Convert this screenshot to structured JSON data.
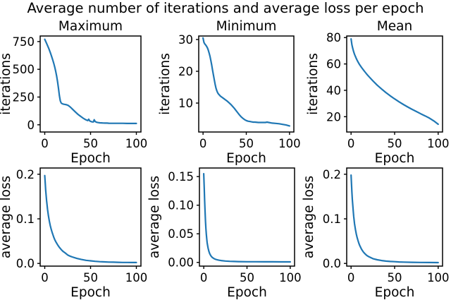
{
  "figure": {
    "title": "Average number of iterations and average loss per epoch"
  },
  "style": {
    "line_color": "#1f77b4",
    "axis_color": "#000000",
    "background": "#ffffff"
  },
  "chart_data": [
    {
      "type": "line",
      "title": "Maximum",
      "xlabel": "Epoch",
      "ylabel": "iterations",
      "legend": null,
      "grid": false,
      "xlim": [
        -5,
        105
      ],
      "ylim": [
        -65,
        800
      ],
      "xticks": [
        {
          "v": 0,
          "label": "0"
        },
        {
          "v": 50,
          "label": "50"
        },
        {
          "v": 100,
          "label": "100"
        }
      ],
      "yticks": [
        {
          "v": 0,
          "label": "0"
        },
        {
          "v": 250,
          "label": "250"
        },
        {
          "v": 500,
          "label": "500"
        },
        {
          "v": 750,
          "label": "750"
        }
      ],
      "x": [
        0,
        1,
        2,
        3,
        4,
        5,
        6,
        7,
        8,
        9,
        10,
        11,
        12,
        13,
        14,
        15,
        16,
        17,
        18,
        19,
        20,
        21,
        22,
        23,
        24,
        25,
        26,
        27,
        28,
        29,
        30,
        32,
        34,
        36,
        38,
        40,
        42,
        44,
        45,
        46,
        47,
        48,
        49,
        50,
        51,
        52,
        53,
        54,
        55,
        56,
        57,
        58,
        60,
        62,
        64,
        66,
        68,
        70,
        75,
        80,
        85,
        90,
        95,
        100
      ],
      "y": [
        770,
        752,
        734,
        715,
        696,
        675,
        652,
        628,
        603,
        577,
        549,
        517,
        480,
        438,
        388,
        328,
        262,
        215,
        196,
        190,
        187,
        185,
        184,
        182,
        180,
        177,
        172,
        166,
        159,
        151,
        143,
        127,
        111,
        96,
        83,
        71,
        59,
        49,
        45,
        41,
        38,
        50,
        36,
        31,
        28,
        26,
        25,
        45,
        30,
        25,
        22,
        20,
        18,
        17,
        16,
        15,
        15,
        14,
        13,
        13,
        13,
        12,
        12,
        12
      ]
    },
    {
      "type": "line",
      "title": "Minimum",
      "xlabel": "Epoch",
      "ylabel": "iterations",
      "legend": null,
      "grid": false,
      "xlim": [
        -5,
        105
      ],
      "ylim": [
        0.9,
        31.1
      ],
      "xticks": [
        {
          "v": 0,
          "label": "0"
        },
        {
          "v": 50,
          "label": "50"
        },
        {
          "v": 100,
          "label": "100"
        }
      ],
      "yticks": [
        {
          "v": 10,
          "label": "10"
        },
        {
          "v": 20,
          "label": "20"
        },
        {
          "v": 30,
          "label": "30"
        }
      ],
      "x": [
        0,
        1,
        2,
        3,
        4,
        5,
        6,
        7,
        8,
        9,
        10,
        11,
        12,
        13,
        14,
        15,
        16,
        17,
        18,
        19,
        20,
        22,
        24,
        26,
        28,
        30,
        32,
        34,
        36,
        38,
        40,
        42,
        44,
        46,
        48,
        50,
        52,
        54,
        56,
        58,
        60,
        64,
        68,
        72,
        74,
        76,
        80,
        84,
        88,
        92,
        96,
        100
      ],
      "y": [
        30.5,
        29.1,
        28.6,
        28.3,
        27.9,
        27.4,
        26.7,
        25.8,
        24.7,
        23.4,
        22.0,
        20.4,
        18.8,
        17.3,
        15.9,
        14.7,
        13.8,
        13.2,
        12.8,
        12.5,
        12.2,
        11.8,
        11.4,
        11.0,
        10.6,
        10.1,
        9.6,
        9.0,
        8.4,
        7.7,
        7.0,
        6.3,
        5.7,
        5.2,
        4.8,
        4.5,
        4.3,
        4.2,
        4.1,
        4.0,
        4.0,
        3.9,
        3.9,
        3.9,
        4.0,
        3.9,
        3.7,
        3.6,
        3.5,
        3.3,
        3.1,
        2.8
      ]
    },
    {
      "type": "line",
      "title": "Mean",
      "xlabel": "Epoch",
      "ylabel": "iterations",
      "legend": null,
      "grid": false,
      "xlim": [
        -5,
        105
      ],
      "ylim": [
        8.4,
        81.2
      ],
      "xticks": [
        {
          "v": 0,
          "label": "0"
        },
        {
          "v": 50,
          "label": "50"
        },
        {
          "v": 100,
          "label": "100"
        }
      ],
      "yticks": [
        {
          "v": 20,
          "label": "20"
        },
        {
          "v": 40,
          "label": "40"
        },
        {
          "v": 60,
          "label": "60"
        },
        {
          "v": 80,
          "label": "80"
        }
      ],
      "x": [
        0,
        1,
        2,
        3,
        4,
        5,
        6,
        7,
        8,
        9,
        10,
        12,
        14,
        16,
        18,
        20,
        25,
        30,
        35,
        40,
        45,
        50,
        55,
        60,
        65,
        70,
        75,
        80,
        85,
        90,
        95,
        100
      ],
      "y": [
        79,
        74.5,
        71.5,
        69.2,
        67.3,
        65.6,
        64.1,
        62.8,
        61.5,
        60.4,
        59.3,
        57.4,
        55.6,
        53.9,
        52.3,
        50.8,
        47.2,
        43.9,
        41.0,
        38.3,
        35.8,
        33.5,
        31.3,
        29.3,
        27.4,
        25.6,
        23.9,
        22.2,
        20.6,
        18.9,
        16.8,
        14.3
      ]
    },
    {
      "type": "line",
      "title": "",
      "xlabel": "Epoch",
      "ylabel": "average loss",
      "legend": null,
      "grid": false,
      "xlim": [
        -5,
        105
      ],
      "ylim": [
        -0.006,
        0.214
      ],
      "xticks": [
        {
          "v": 0,
          "label": "0"
        },
        {
          "v": 50,
          "label": "50"
        },
        {
          "v": 100,
          "label": "100"
        }
      ],
      "yticks": [
        {
          "v": 0.0,
          "label": "0.0"
        },
        {
          "v": 0.1,
          "label": "0.1"
        },
        {
          "v": 0.2,
          "label": "0.2"
        }
      ],
      "x": [
        0,
        0.5,
        1,
        1.5,
        2,
        2.5,
        3,
        4,
        5,
        6,
        7,
        8,
        9,
        10,
        11,
        12,
        14,
        16,
        18,
        20,
        22,
        25,
        28,
        30,
        35,
        40,
        45,
        50,
        55,
        60,
        65,
        70,
        75,
        80,
        85,
        90,
        95,
        100
      ],
      "y": [
        0.197,
        0.18,
        0.165,
        0.152,
        0.141,
        0.131,
        0.122,
        0.107,
        0.095,
        0.085,
        0.077,
        0.07,
        0.064,
        0.058,
        0.053,
        0.049,
        0.042,
        0.036,
        0.031,
        0.027,
        0.024,
        0.019,
        0.016,
        0.0145,
        0.0112,
        0.0088,
        0.007,
        0.0058,
        0.0048,
        0.004,
        0.0035,
        0.0031,
        0.0028,
        0.0025,
        0.0023,
        0.0022,
        0.0021,
        0.002
      ]
    },
    {
      "type": "line",
      "title": "",
      "xlabel": "Epoch",
      "ylabel": "average loss",
      "legend": null,
      "grid": false,
      "xlim": [
        -5,
        105
      ],
      "ylim": [
        -0.0065,
        0.165
      ],
      "xticks": [
        {
          "v": 0,
          "label": "0"
        },
        {
          "v": 50,
          "label": "50"
        },
        {
          "v": 100,
          "label": "100"
        }
      ],
      "yticks": [
        {
          "v": 0.0,
          "label": "0.00"
        },
        {
          "v": 0.05,
          "label": "0.05"
        },
        {
          "v": 0.1,
          "label": "0.10"
        },
        {
          "v": 0.15,
          "label": "0.15"
        }
      ],
      "x": [
        0,
        0.5,
        1,
        1.5,
        2,
        2.5,
        3,
        3.5,
        4,
        4.5,
        5,
        6,
        7,
        8,
        9,
        10,
        12,
        14,
        16,
        18,
        20,
        25,
        30,
        35,
        40,
        50,
        60,
        70,
        80,
        90,
        100
      ],
      "y": [
        0.155,
        0.131,
        0.108,
        0.089,
        0.072,
        0.059,
        0.049,
        0.041,
        0.034,
        0.029,
        0.025,
        0.019,
        0.015,
        0.012,
        0.01,
        0.0085,
        0.0065,
        0.0052,
        0.0043,
        0.0037,
        0.0032,
        0.0024,
        0.0019,
        0.0016,
        0.0014,
        0.0012,
        0.0011,
        0.001,
        0.001,
        0.0009,
        0.0009
      ]
    },
    {
      "type": "line",
      "title": "",
      "xlabel": "Epoch",
      "ylabel": "average loss",
      "legend": null,
      "grid": false,
      "xlim": [
        -5,
        105
      ],
      "ylim": [
        -0.006,
        0.214
      ],
      "xticks": [
        {
          "v": 0,
          "label": "0"
        },
        {
          "v": 50,
          "label": "50"
        },
        {
          "v": 100,
          "label": "100"
        }
      ],
      "yticks": [
        {
          "v": 0.0,
          "label": "0.0"
        },
        {
          "v": 0.1,
          "label": "0.1"
        },
        {
          "v": 0.2,
          "label": "0.2"
        }
      ],
      "x": [
        0,
        0.5,
        1,
        1.5,
        2,
        2.5,
        3,
        4,
        5,
        6,
        7,
        8,
        9,
        10,
        12,
        14,
        16,
        18,
        20,
        25,
        30,
        35,
        40,
        45,
        50,
        55,
        60,
        70,
        80,
        90,
        100
      ],
      "y": [
        0.198,
        0.178,
        0.159,
        0.143,
        0.129,
        0.117,
        0.106,
        0.089,
        0.076,
        0.066,
        0.058,
        0.051,
        0.045,
        0.04,
        0.032,
        0.026,
        0.0215,
        0.018,
        0.0155,
        0.0108,
        0.0082,
        0.0065,
        0.0053,
        0.0045,
        0.0039,
        0.0034,
        0.0031,
        0.0026,
        0.0022,
        0.002,
        0.0019
      ]
    }
  ]
}
